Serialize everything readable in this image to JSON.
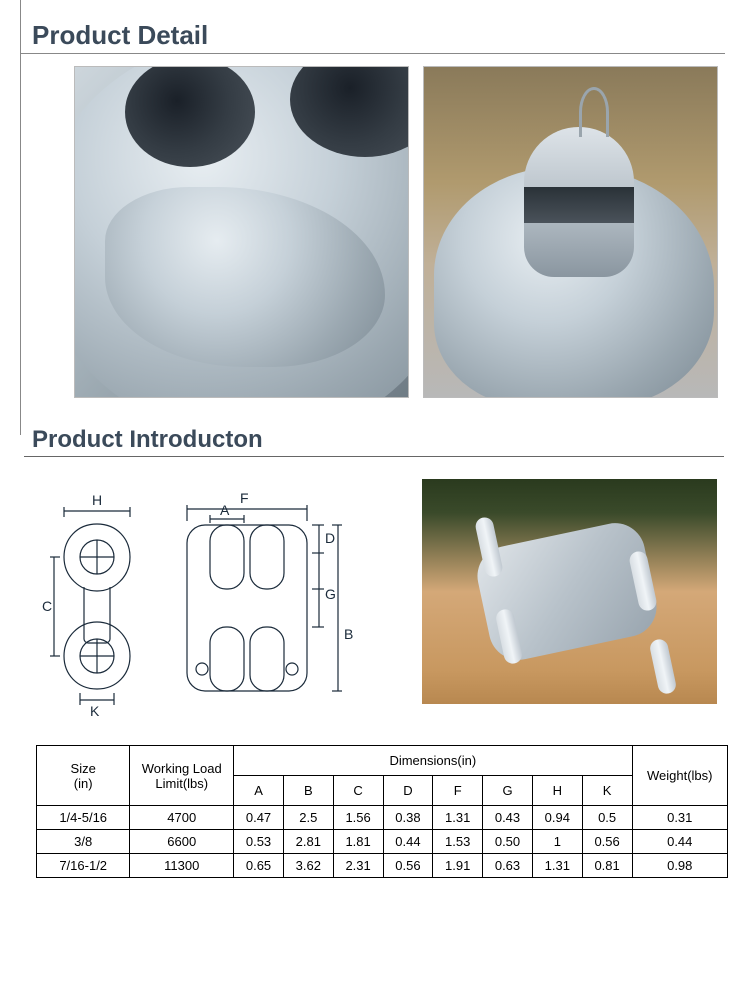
{
  "sections": {
    "detail_title": "Product Detail",
    "intro_title": "Product Introducton"
  },
  "colors": {
    "title_text": "#3b4a5a",
    "rule_line": "#888888",
    "table_border": "#000000",
    "body_bg": "#ffffff",
    "metal_light": "#e8eef2",
    "metal_mid": "#c5d0d8",
    "metal_dark": "#7a8892",
    "wood_bg_top": "#8a7a5a",
    "wood_bg_mid": "#d4a878"
  },
  "diagram_labels": {
    "H": "H",
    "F": "F",
    "A": "A",
    "D": "D",
    "G": "G",
    "B": "B",
    "C": "C",
    "K": "K"
  },
  "spec_table": {
    "columns_group1": "Size\n(in)",
    "columns_group2": "Working Load\nLimit(lbs)",
    "columns_group3": "Dimensions(in)",
    "columns_group4": "Weight(lbs)",
    "dim_cols": [
      "A",
      "B",
      "C",
      "D",
      "F",
      "G",
      "H",
      "K"
    ],
    "rows": [
      {
        "size": "1/4-5/16",
        "wll": "4700",
        "A": "0.47",
        "B": "2.5",
        "C": "1.56",
        "D": "0.38",
        "F": "1.31",
        "G": "0.43",
        "H": "0.94",
        "K": "0.5",
        "weight": "0.31"
      },
      {
        "size": "3/8",
        "wll": "6600",
        "A": "0.53",
        "B": "2.81",
        "C": "1.81",
        "D": "0.44",
        "F": "1.53",
        "G": "0.50",
        "H": "1",
        "K": "0.56",
        "weight": "0.44"
      },
      {
        "size": "7/16-1/2",
        "wll": "11300",
        "A": "0.65",
        "B": "3.62",
        "C": "2.31",
        "D": "0.56",
        "F": "1.91",
        "G": "0.63",
        "H": "1.31",
        "K": "0.81",
        "weight": "0.98"
      }
    ],
    "col_widths": {
      "size": 90,
      "wll": 100,
      "dim": 48,
      "weight": 92
    },
    "fontsize": 13
  }
}
